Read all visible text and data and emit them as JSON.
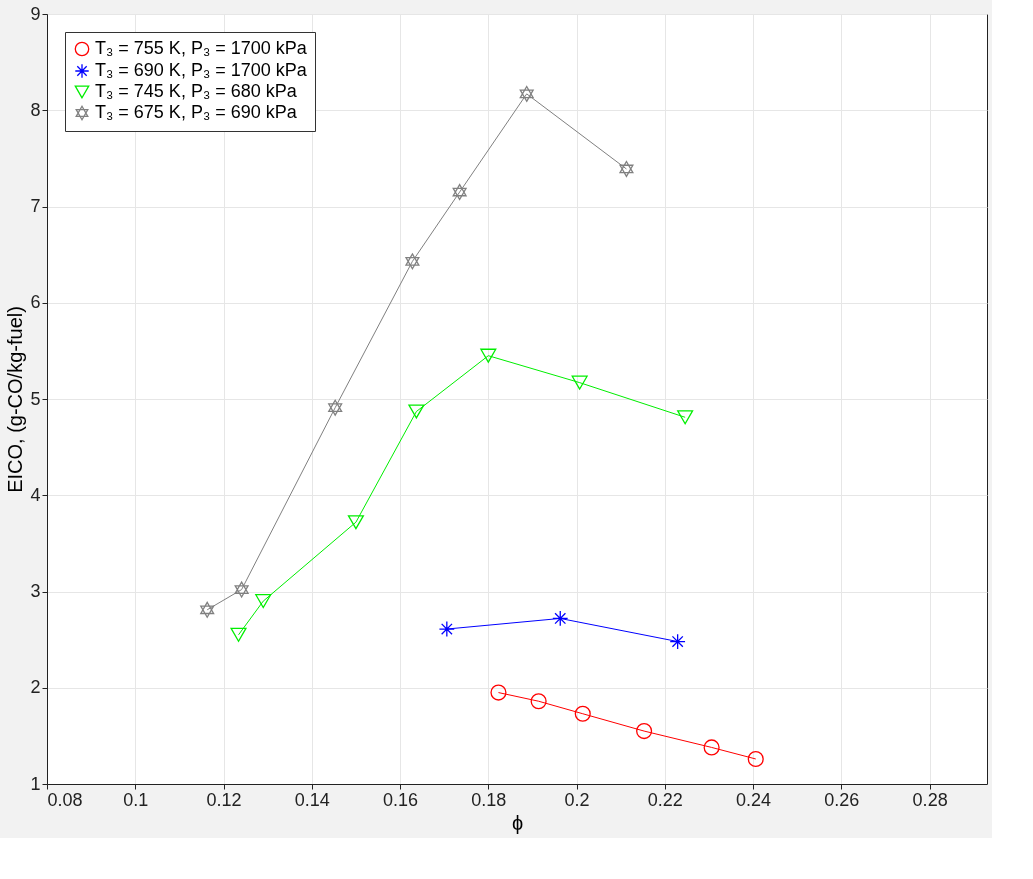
{
  "chart_data": {
    "type": "line",
    "xlabel": "ϕ",
    "ylabel": "EICO, (g-CO/kg-fuel)",
    "xlim": [
      0.08,
      0.293
    ],
    "xticks": [
      0.08,
      0.1,
      0.12,
      0.14,
      0.16,
      0.18,
      0.2,
      0.22,
      0.24,
      0.26,
      0.28
    ],
    "ylim": [
      1,
      9
    ],
    "yticks": [
      1,
      2,
      3,
      4,
      5,
      6,
      7,
      8,
      9
    ],
    "grid": true,
    "legend": "top left",
    "line_style": "solid",
    "series": [
      {
        "name": "T₃ = 755 K, P₃ = 1700 kPa",
        "color": "#ff0000",
        "marker": "circle",
        "x": [
          0.1823,
          0.1914,
          0.2014,
          0.2153,
          0.2306,
          0.2406
        ],
        "values": [
          1.95,
          1.86,
          1.73,
          1.55,
          1.38,
          1.26
        ]
      },
      {
        "name": "T₃ = 690 K, P₃ = 1700 kPa",
        "color": "#0000ff",
        "marker": "cross",
        "x": [
          0.1706,
          0.1963,
          0.2229
        ],
        "values": [
          2.61,
          2.72,
          2.48
        ]
      },
      {
        "name": "T₃ = 745 K, P₃ = 680 kPa",
        "color": "#00ee00",
        "marker": "triangle",
        "x": [
          0.1234,
          0.129,
          0.15,
          0.1637,
          0.18,
          0.2007,
          0.2246
        ],
        "values": [
          2.55,
          2.9,
          3.72,
          4.87,
          5.45,
          5.17,
          4.81
        ]
      },
      {
        "name": "T₃ = 675 K, P₃ = 690 kPa",
        "color": "#808080",
        "marker": "star",
        "x": [
          0.1163,
          0.1241,
          0.1453,
          0.1628,
          0.1735,
          0.1887,
          0.2113
        ],
        "values": [
          2.81,
          3.02,
          4.91,
          6.43,
          7.15,
          8.17,
          7.39
        ]
      }
    ]
  }
}
